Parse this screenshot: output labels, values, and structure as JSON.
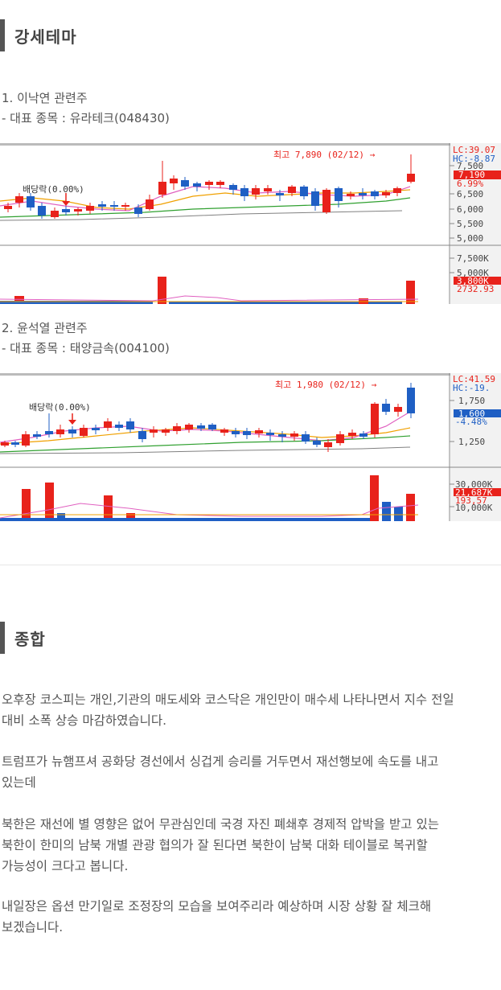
{
  "section1": {
    "title": "강세테마",
    "item1": {
      "heading": "1. 이낙연 관련주",
      "stock": "- 대표 종목 : 유라테크(048430)"
    },
    "item2": {
      "heading": "2. 윤석열 관련주",
      "stock": "- 대표 종목 : 태양금속(004100)"
    }
  },
  "chart1": {
    "high_note": "최고 7,890 (02/12) →",
    "dividend_note": "배당락(0.00%)",
    "lc": "LC:39.07",
    "hc": "HC:-8.87",
    "price_labels": [
      "7,500",
      "6,500",
      "6,000",
      "5,500",
      "5,000"
    ],
    "current_price": "7,190",
    "change": "6.99%",
    "vol_labels": [
      "7,500K",
      "5,000K"
    ],
    "current_vol": "3,800K",
    "vol_ma": "2732.93",
    "colors": {
      "up": "#e8221b",
      "down": "#1f5fc4",
      "grid": "#cccccc"
    }
  },
  "chart2": {
    "high_note": "최고 1,980 (02/12) →",
    "dividend_note": "배당락(0.00%)",
    "lc": "LC:41.59",
    "hc": "HC:-19.",
    "price_labels": [
      "1,750",
      "1,250"
    ],
    "current_price": "1,600",
    "change": "-4.48%",
    "vol_labels": [
      "30,000K",
      "10,000K"
    ],
    "current_vol": "21,687K",
    "vol_ma": "193,57",
    "colors": {
      "up": "#e8221b",
      "down": "#1f5fc4",
      "grid": "#cccccc"
    }
  },
  "section2": {
    "title": "종합",
    "para1": [
      "오후장 코스피는 개인,기관의 매도세와 코스닥은 개인만이 매수세 나타나면서 지수 전일",
      "대비 소폭 상승 마감하였습니다."
    ],
    "para2": [
      "트럼프가 뉴햄프셔 공화당 경선에서 싱겁게 승리를 거두면서 재선행보에 속도를 내고",
      "있는데"
    ],
    "para3": [
      "북한은 재선에 별 영향은 없어 무관심인데 국경 자진 폐쇄후 경제적 압박을 받고 있는",
      "북한이 한미의 남북 개별 관광 협의가 잘 된다면 북한이 남북 대화 테이블로 복귀할",
      "가능성이 크다고 봅니다."
    ],
    "para4": [
      "내일장은 옵션 만기일로 조정장의 모습을 보여주리라 예상하며 시장 상황 잘 체크해",
      "보겠습니다."
    ]
  }
}
